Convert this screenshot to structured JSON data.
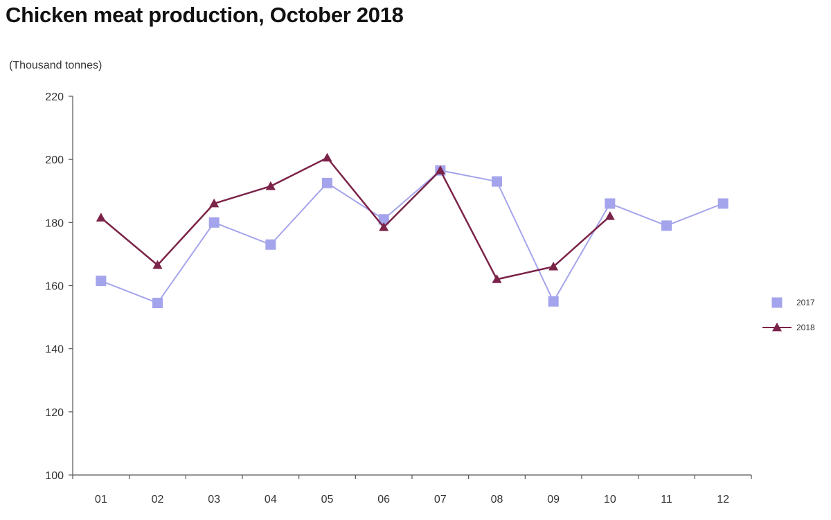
{
  "chart_data": {
    "type": "line",
    "title": "Chicken meat production, October 2018",
    "ylabel": "(Thousand tonnes)",
    "xlabel": "",
    "categories": [
      "01",
      "02",
      "03",
      "04",
      "05",
      "06",
      "07",
      "08",
      "09",
      "10",
      "11",
      "12"
    ],
    "ylim": [
      100,
      220
    ],
    "yticks": [
      100,
      120,
      140,
      160,
      180,
      200,
      220
    ],
    "grid": false,
    "legend_position": "right",
    "series": [
      {
        "name": "2017",
        "color": "#a4a4ec",
        "marker": "square",
        "values": [
          161.5,
          154.5,
          180.0,
          173.0,
          192.5,
          181.0,
          196.5,
          193.0,
          155.0,
          186.0,
          179.0,
          186.0
        ]
      },
      {
        "name": "2018",
        "color": "#7b2348",
        "marker": "triangle",
        "values": [
          181.5,
          166.5,
          186.0,
          191.5,
          200.5,
          178.5,
          196.5,
          162.0,
          166.0,
          182.0,
          null,
          null
        ]
      }
    ]
  }
}
